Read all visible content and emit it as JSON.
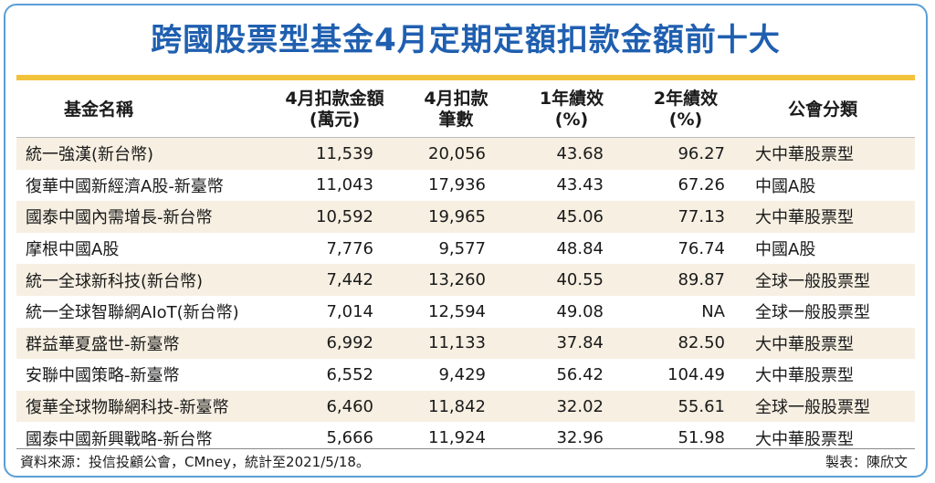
{
  "title": "跨國股票型基金4月定期定額扣款金額前十大",
  "table": {
    "headers": [
      [
        "基金名稱"
      ],
      [
        "4月扣款金額",
        "(萬元)"
      ],
      [
        "4月扣款",
        "筆數"
      ],
      [
        "1年績效",
        "(%)"
      ],
      [
        "2年績效",
        "(%)"
      ],
      [
        "公會分類"
      ]
    ],
    "rows": [
      [
        "統一強漢(新台幣)",
        "11,539",
        "20,056",
        "43.68",
        "96.27",
        "大中華股票型"
      ],
      [
        "復華中國新經濟A股-新臺幣",
        "11,043",
        "17,936",
        "43.43",
        "67.26",
        "中國A股"
      ],
      [
        "國泰中國內需增長-新台幣",
        "10,592",
        "19,965",
        "45.06",
        "77.13",
        "大中華股票型"
      ],
      [
        "摩根中國A股",
        "7,776",
        "9,577",
        "48.84",
        "76.74",
        "中國A股"
      ],
      [
        "統一全球新科技(新台幣)",
        "7,442",
        "13,260",
        "40.55",
        "89.87",
        "全球一般股票型"
      ],
      [
        "統一全球智聯網AIoT(新台幣)",
        "7,014",
        "12,594",
        "49.08",
        "NA",
        "全球一般股票型"
      ],
      [
        "群益華夏盛世-新臺幣",
        "6,992",
        "11,133",
        "37.84",
        "82.50",
        "大中華股票型"
      ],
      [
        "安聯中國策略-新臺幣",
        "6,552",
        "9,429",
        "56.42",
        "104.49",
        "大中華股票型"
      ],
      [
        "復華全球物聯網科技-新臺幣",
        "6,460",
        "11,842",
        "32.02",
        "55.61",
        "全球一般股票型"
      ],
      [
        "國泰中國新興戰略-新台幣",
        "5,666",
        "11,924",
        "32.96",
        "51.98",
        "大中華股票型"
      ]
    ]
  },
  "footer": {
    "source": "資料來源：投信投顧公會，CMney，統計至2021/5/18。",
    "credit": "製表：陳欣文"
  },
  "colors": {
    "title": "#1f5fb0",
    "accent_rule": "#f2c23a",
    "border": "#5a9fd6",
    "row_stripe": "#f6efe2"
  }
}
